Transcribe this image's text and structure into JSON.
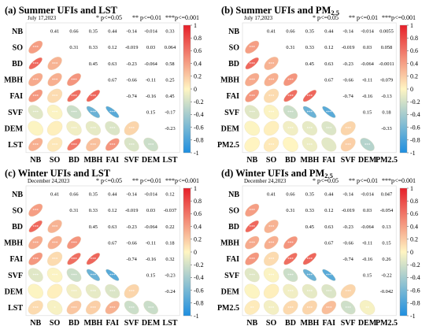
{
  "colors": {
    "negative_end": "#1e8fe0",
    "neutral": "#fff5c2",
    "positive_end": "#e6202a"
  },
  "chart_data": [
    {
      "type": "heatmap",
      "panel_label": "(a)",
      "title_season": "Summer",
      "title_sub": "UFIs and LST",
      "date": "July 17,2023",
      "significance_legend": [
        "* p<=0.05",
        "** p<=0.01",
        "***p<=0.001"
      ],
      "variables": [
        "NB",
        "SO",
        "BD",
        "MBH",
        "FAI",
        "SVF",
        "DEM",
        "LST"
      ],
      "upper": [
        [
          0.41,
          0.66,
          0.35,
          0.44,
          -0.14,
          -0.014,
          0.33
        ],
        [
          0.31,
          0.33,
          0.12,
          -0.019,
          0.03,
          0.064
        ],
        [
          0.45,
          0.63,
          -0.23,
          -0.064,
          0.58
        ],
        [
          0.67,
          -0.66,
          -0.11,
          0.25
        ],
        [
          -0.74,
          -0.16,
          0.45
        ],
        [
          0.15,
          -0.17
        ],
        [
          -0.23
        ]
      ],
      "lower_significance": [
        [
          "***"
        ],
        [
          "***",
          "***"
        ],
        [
          "***",
          "***",
          "***"
        ],
        [
          "***",
          "***",
          "***",
          "***"
        ],
        [
          "***",
          "***",
          "***",
          "***",
          "***"
        ],
        [
          "",
          "",
          "***",
          "***",
          "***",
          "***"
        ],
        [
          "***",
          "***",
          "***",
          "***",
          "***",
          "***",
          "***"
        ]
      ],
      "colorbar": {
        "min": -1,
        "max": 1,
        "ticks": [
          "1",
          "0.8",
          "0.6",
          "0.4",
          "0.2",
          "0",
          "-0.2",
          "-0.4",
          "-0.6",
          "-0.8",
          "-1"
        ]
      }
    },
    {
      "type": "heatmap",
      "panel_label": "(b)",
      "title_season": "Summer",
      "title_sub": "UFIs and PM",
      "title_sub_script": "2.5",
      "date": "July 17,2023",
      "significance_legend": [
        "* p<=0.05",
        "** p<=0.01",
        "***p<=0.001"
      ],
      "variables": [
        "NB",
        "SO",
        "BD",
        "MBH",
        "FAI",
        "SVF",
        "DEM",
        "PM2.5"
      ],
      "upper": [
        [
          0.41,
          0.66,
          0.35,
          0.44,
          -0.14,
          -0.014,
          0.0055
        ],
        [
          0.31,
          0.33,
          0.12,
          -0.019,
          0.03,
          0.058
        ],
        [
          0.45,
          0.63,
          -0.23,
          -0.064,
          -0.0011
        ],
        [
          0.67,
          -0.66,
          -0.11,
          -0.079
        ],
        [
          -0.74,
          -0.16,
          -0.13
        ],
        [
          0.15,
          0.18
        ],
        [
          -0.33
        ]
      ],
      "lower_significance": [
        [
          "***"
        ],
        [
          "***",
          "***"
        ],
        [
          "***",
          "***",
          "***"
        ],
        [
          "***",
          "***",
          "***",
          "***"
        ],
        [
          "***",
          "***",
          "***",
          "***",
          "***"
        ],
        [
          "",
          "",
          "***",
          "***",
          "***",
          "***"
        ],
        [
          "",
          "***",
          "",
          "***",
          "",
          "***",
          "***"
        ]
      ],
      "colorbar": {
        "min": -1,
        "max": 1,
        "ticks": [
          "1",
          "0.8",
          "0.6",
          "0.4",
          "0.2",
          "0",
          "-0.2",
          "-0.4",
          "-0.6",
          "-0.8",
          "-1"
        ]
      }
    },
    {
      "type": "heatmap",
      "panel_label": "(c)",
      "title_season": "Winter",
      "title_sub": "UFIs and LST",
      "date": "December 24,2023",
      "significance_legend": [
        "* p<=0.05",
        "** p<=0.01",
        "***p<=0.001"
      ],
      "variables": [
        "NB",
        "SO",
        "BD",
        "MBH",
        "FAI",
        "SVF",
        "DEM",
        "LST"
      ],
      "upper": [
        [
          0.41,
          0.66,
          0.35,
          0.44,
          -0.14,
          -0.014,
          0.12
        ],
        [
          0.31,
          0.33,
          0.12,
          -0.019,
          0.03,
          -0.037
        ],
        [
          0.45,
          0.63,
          -0.23,
          -0.064,
          0.22
        ],
        [
          0.67,
          -0.66,
          -0.11,
          0.18
        ],
        [
          -0.74,
          -0.16,
          0.32
        ],
        [
          0.15,
          -0.23
        ],
        [
          -0.24
        ]
      ],
      "lower_significance": [
        [
          "***"
        ],
        [
          "***",
          "***"
        ],
        [
          "***",
          "***",
          "***"
        ],
        [
          "***",
          "***",
          "***",
          "***"
        ],
        [
          "***",
          "***",
          "***",
          "***",
          "***"
        ],
        [
          "",
          "",
          "***",
          "***",
          "***",
          "***"
        ],
        [
          "***",
          "*",
          "***",
          "***",
          "***",
          "***",
          "***"
        ]
      ],
      "colorbar": {
        "min": -1,
        "max": 1,
        "ticks": [
          "1",
          "0.8",
          "0.6",
          "0.4",
          "0.2",
          "0",
          "-0.2",
          "-0.4",
          "-0.6",
          "-0.8",
          "-1"
        ]
      }
    },
    {
      "type": "heatmap",
      "panel_label": "(d)",
      "title_season": "Winter",
      "title_sub": "UFIs and PM",
      "title_sub_script": "2.5",
      "date": "December 24,2023",
      "significance_legend": [
        "* p<=0.05",
        "** p<=0.01",
        "***p<=0.001"
      ],
      "variables": [
        "NB",
        "SO",
        "BD",
        "MBH",
        "FAI",
        "SVF",
        "DEM",
        "PM2.5"
      ],
      "upper": [
        [
          0.41,
          0.66,
          0.35,
          0.44,
          -0.14,
          -0.014,
          0.047
        ],
        [
          0.31,
          0.33,
          0.12,
          -0.019,
          0.03,
          -0.054
        ],
        [
          0.45,
          0.63,
          -0.23,
          -0.064,
          0.13
        ],
        [
          0.67,
          -0.66,
          -0.11,
          0.15
        ],
        [
          -0.74,
          -0.16,
          0.26
        ],
        [
          0.15,
          -0.22
        ],
        [
          -0.042
        ]
      ],
      "lower_significance": [
        [
          "***"
        ],
        [
          "***",
          "***"
        ],
        [
          "***",
          "***",
          "***"
        ],
        [
          "***",
          "***",
          "***",
          "***"
        ],
        [
          "***",
          "***",
          "***",
          "***",
          "***"
        ],
        [
          "",
          "",
          "***",
          "***",
          "***",
          "***"
        ],
        [
          "**",
          "***",
          "***",
          "***",
          "***",
          "***",
          "**"
        ]
      ],
      "colorbar": {
        "min": -1,
        "max": 1,
        "ticks": [
          "1",
          "0.8",
          "0.6",
          "0.4",
          "0.2",
          "0",
          "-0.2",
          "-0.4",
          "-0.6",
          "-0.8",
          "-1"
        ]
      }
    }
  ]
}
